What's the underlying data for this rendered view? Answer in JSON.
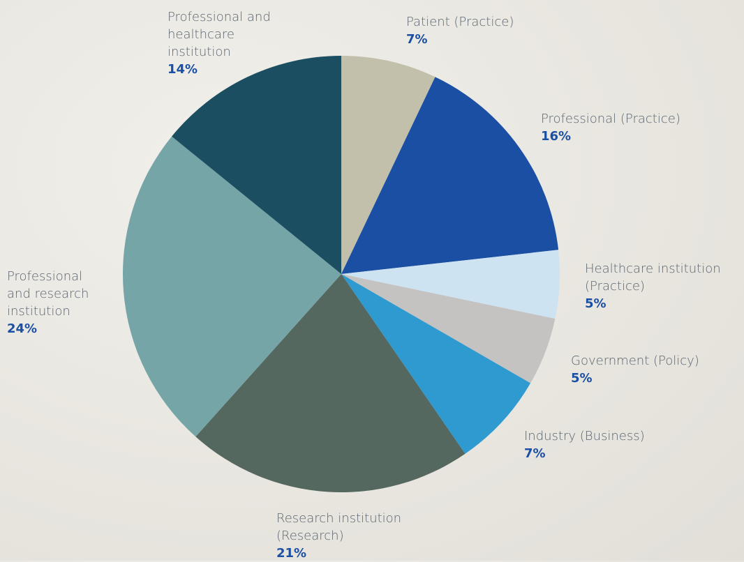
{
  "chart_data": {
    "type": "pie",
    "categories": [
      "Patient (Practice)",
      "Professional (Practice)",
      "Healthcare institution (Practice)",
      "Government (Policy)",
      "Industry (Business)",
      "Research institution (Research)",
      "Professional and research institution",
      "Professional and healthcare institution"
    ],
    "values": [
      7,
      16,
      5,
      5,
      7,
      21,
      24,
      14
    ],
    "value_labels": [
      "7%",
      "16%",
      "5%",
      "5%",
      "7%",
      "21%",
      "24%",
      "14%"
    ],
    "colors": [
      "#c2bfaa",
      "#1a4fa3",
      "#cde3f1",
      "#c4c3c2",
      "#2e9ad0",
      "#55685f",
      "#76a5a8",
      "#1b4e60"
    ]
  }
}
